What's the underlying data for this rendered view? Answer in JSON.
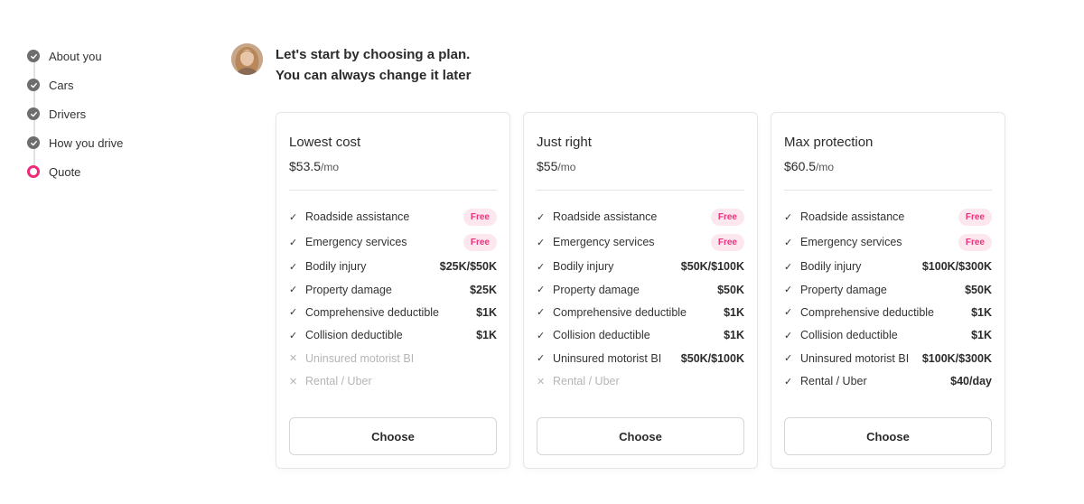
{
  "steps": [
    {
      "label": "About you",
      "state": "done"
    },
    {
      "label": "Cars",
      "state": "done"
    },
    {
      "label": "Drivers",
      "state": "done"
    },
    {
      "label": "How you drive",
      "state": "done"
    },
    {
      "label": "Quote",
      "state": "current"
    }
  ],
  "greeting": {
    "line1": "Let's start by choosing a plan.",
    "line2": "You can always change it later"
  },
  "colors": {
    "accent": "#ee2a7b",
    "badge_bg": "#fde7ef",
    "badge_text": "#e8337e",
    "step_done": "#6e6e6e"
  },
  "plans": [
    {
      "name": "Lowest cost",
      "price": "$53.5",
      "per": "/mo",
      "button": "Choose",
      "features": [
        {
          "label": "Roadside assistance",
          "value": "Free",
          "included": true,
          "badge": true
        },
        {
          "label": "Emergency services",
          "value": "Free",
          "included": true,
          "badge": true
        },
        {
          "label": "Bodily injury",
          "value": "$25K/$50K",
          "included": true
        },
        {
          "label": "Property damage",
          "value": "$25K",
          "included": true
        },
        {
          "label": "Comprehensive deductible",
          "value": "$1K",
          "included": true
        },
        {
          "label": "Collision deductible",
          "value": "$1K",
          "included": true
        },
        {
          "label": "Uninsured motorist BI",
          "value": "",
          "included": false
        },
        {
          "label": "Rental / Uber",
          "value": "",
          "included": false
        }
      ]
    },
    {
      "name": "Just right",
      "price": "$55",
      "per": "/mo",
      "button": "Choose",
      "features": [
        {
          "label": "Roadside assistance",
          "value": "Free",
          "included": true,
          "badge": true
        },
        {
          "label": "Emergency services",
          "value": "Free",
          "included": true,
          "badge": true
        },
        {
          "label": "Bodily injury",
          "value": "$50K/$100K",
          "included": true
        },
        {
          "label": "Property damage",
          "value": "$50K",
          "included": true
        },
        {
          "label": "Comprehensive deductible",
          "value": "$1K",
          "included": true
        },
        {
          "label": "Collision deductible",
          "value": "$1K",
          "included": true
        },
        {
          "label": "Uninsured motorist BI",
          "value": "$50K/$100K",
          "included": true
        },
        {
          "label": "Rental / Uber",
          "value": "",
          "included": false
        }
      ]
    },
    {
      "name": "Max protection",
      "price": "$60.5",
      "per": "/mo",
      "button": "Choose",
      "features": [
        {
          "label": "Roadside assistance",
          "value": "Free",
          "included": true,
          "badge": true
        },
        {
          "label": "Emergency services",
          "value": "Free",
          "included": true,
          "badge": true
        },
        {
          "label": "Bodily injury",
          "value": "$100K/$300K",
          "included": true
        },
        {
          "label": "Property damage",
          "value": "$50K",
          "included": true
        },
        {
          "label": "Comprehensive deductible",
          "value": "$1K",
          "included": true
        },
        {
          "label": "Collision deductible",
          "value": "$1K",
          "included": true
        },
        {
          "label": "Uninsured motorist BI",
          "value": "$100K/$300K",
          "included": true
        },
        {
          "label": "Rental / Uber",
          "value": "$40/day",
          "included": true
        }
      ]
    }
  ]
}
